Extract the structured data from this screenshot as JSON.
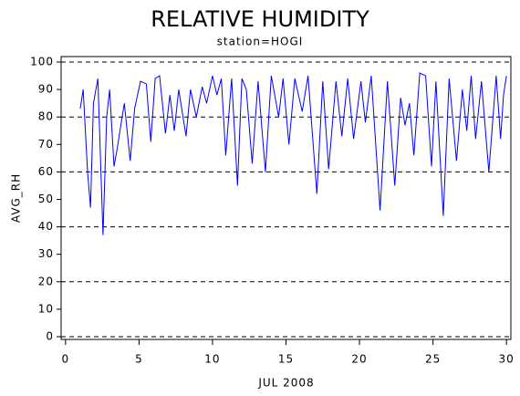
{
  "chart_data": {
    "type": "line",
    "title": "RELATIVE HUMIDITY",
    "subtitle": "station=HOGI",
    "x_label": "JUL 2008",
    "y_label": "AVG_RH",
    "color": "#0000ff",
    "x": [
      1.0,
      1.2,
      1.5,
      1.7,
      1.9,
      2.2,
      2.55,
      2.8,
      3.0,
      3.3,
      3.5,
      4.0,
      4.4,
      4.7,
      5.1,
      5.5,
      5.8,
      6.1,
      6.4,
      6.8,
      7.1,
      7.4,
      7.7,
      8.2,
      8.5,
      8.9,
      9.3,
      9.6,
      10.0,
      10.3,
      10.6,
      10.9,
      11.3,
      11.7,
      12.0,
      12.3,
      12.7,
      13.1,
      13.6,
      14.0,
      14.5,
      14.8,
      15.2,
      15.6,
      16.1,
      16.5,
      17.1,
      17.5,
      17.9,
      18.4,
      18.8,
      19.2,
      19.6,
      20.1,
      20.4,
      20.8,
      21.4,
      21.9,
      22.4,
      22.8,
      23.1,
      23.4,
      23.7,
      24.1,
      24.5,
      24.9,
      25.2,
      25.7,
      26.1,
      26.6,
      27.0,
      27.3,
      27.6,
      27.9,
      28.3,
      28.8,
      29.3,
      29.6,
      29.8,
      30.0
    ],
    "values": [
      83,
      90,
      60,
      47,
      85,
      94,
      37,
      80,
      90,
      62,
      68,
      85,
      64,
      83,
      93,
      92,
      71,
      94,
      95,
      74,
      88,
      75,
      90,
      73,
      90,
      80,
      91,
      85,
      95,
      88,
      94,
      66,
      94,
      55,
      94,
      90,
      63,
      93,
      60,
      95,
      80,
      94,
      70,
      94,
      82,
      95,
      52,
      93,
      61,
      93,
      73,
      94,
      72,
      93,
      78,
      95,
      46,
      93,
      55,
      87,
      77,
      85,
      66,
      96,
      95,
      62,
      93,
      44,
      94,
      64,
      90,
      75,
      95,
      72,
      93,
      60,
      95,
      72,
      88,
      95
    ],
    "xlim": [
      -0.3,
      30.3
    ],
    "xticks": [
      0,
      5,
      10,
      15,
      20,
      25,
      30
    ],
    "ylim": [
      -1,
      102
    ],
    "yticks": [
      0,
      10,
      20,
      30,
      40,
      50,
      60,
      70,
      80,
      90,
      100
    ],
    "gridlines": [
      0,
      20,
      40,
      60,
      80,
      100
    ]
  }
}
